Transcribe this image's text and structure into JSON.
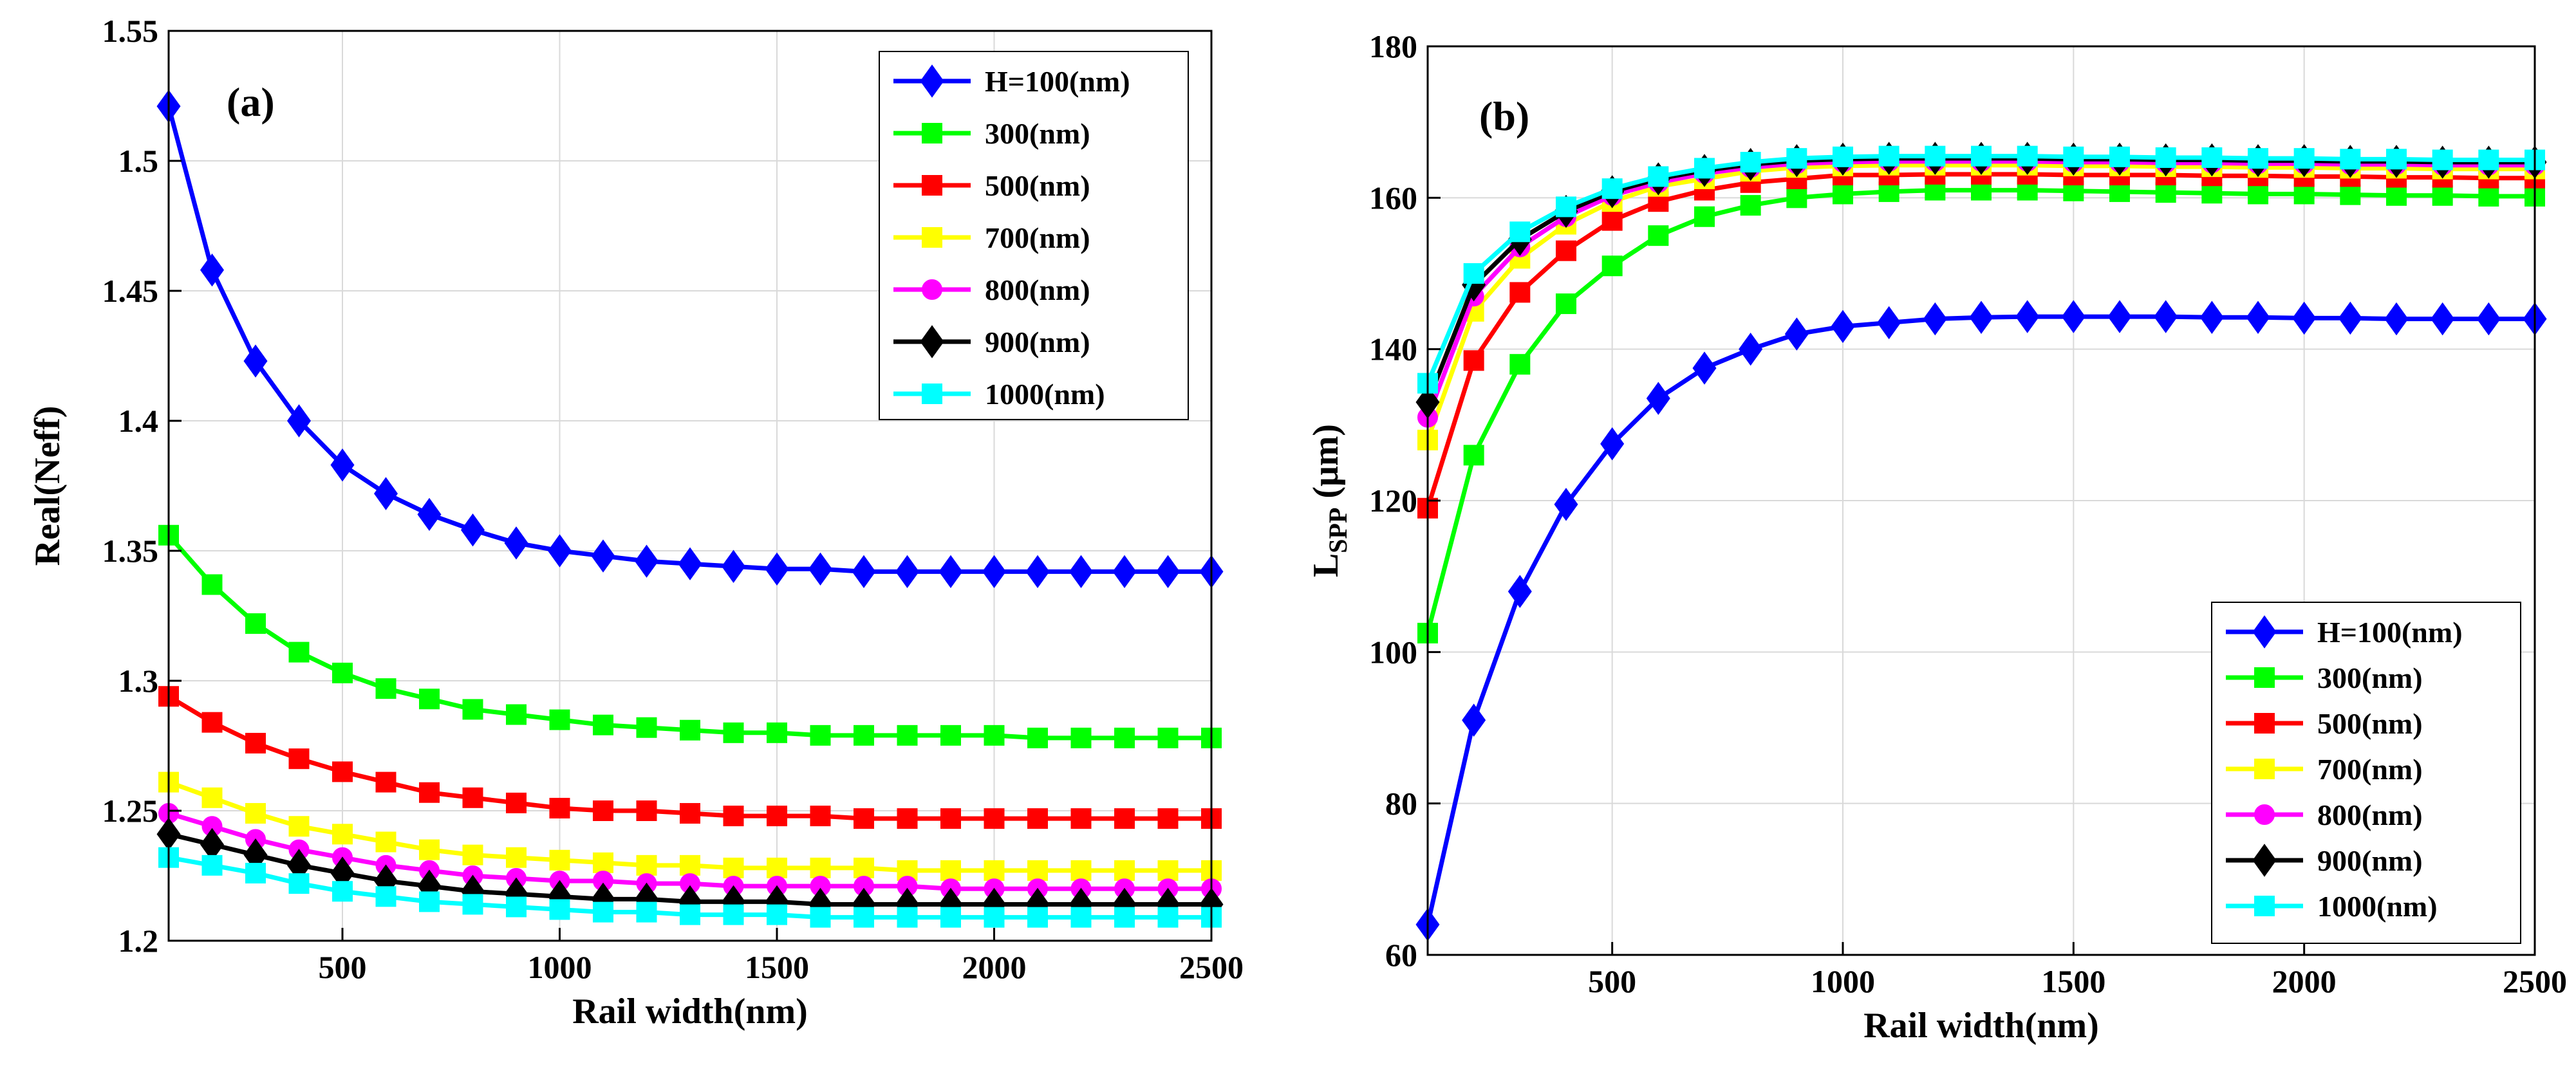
{
  "chart_data": [
    {
      "type": "line",
      "panel_label": "(a)",
      "xlabel": "Rail width(nm)",
      "ylabel": "Real(Neff)",
      "xlim": [
        100,
        2500
      ],
      "ylim": [
        1.2,
        1.55
      ],
      "xticks": [
        500,
        1000,
        1500,
        2000,
        2500
      ],
      "yticks": [
        1.2,
        1.25,
        1.3,
        1.35,
        1.4,
        1.45,
        1.5,
        1.55
      ],
      "ytick_labels": [
        "1.2",
        "1.25",
        "1.3",
        "1.35",
        "1.4",
        "1.45",
        "1.5",
        "1.55"
      ],
      "grid": true,
      "legend_position": "top-right",
      "x": [
        100,
        200,
        300,
        400,
        500,
        600,
        700,
        800,
        900,
        1000,
        1100,
        1200,
        1300,
        1400,
        1500,
        1600,
        1700,
        1800,
        1900,
        2000,
        2100,
        2200,
        2300,
        2400,
        2500
      ],
      "series": [
        {
          "name": "H=100(nm)",
          "color": "#0000ff",
          "marker": "diamond",
          "values": [
            1.521,
            1.458,
            1.423,
            1.4,
            1.383,
            1.372,
            1.364,
            1.358,
            1.353,
            1.35,
            1.348,
            1.346,
            1.345,
            1.344,
            1.343,
            1.343,
            1.342,
            1.342,
            1.342,
            1.342,
            1.342,
            1.342,
            1.342,
            1.342,
            1.342
          ]
        },
        {
          "name": "300(nm)",
          "color": "#00ff00",
          "marker": "square",
          "values": [
            1.356,
            1.337,
            1.322,
            1.311,
            1.303,
            1.297,
            1.293,
            1.289,
            1.287,
            1.285,
            1.283,
            1.282,
            1.281,
            1.28,
            1.28,
            1.279,
            1.279,
            1.279,
            1.279,
            1.279,
            1.278,
            1.278,
            1.278,
            1.278,
            1.278
          ]
        },
        {
          "name": "500(nm)",
          "color": "#ff0000",
          "marker": "square",
          "values": [
            1.294,
            1.284,
            1.276,
            1.27,
            1.265,
            1.261,
            1.257,
            1.255,
            1.253,
            1.251,
            1.25,
            1.25,
            1.249,
            1.248,
            1.248,
            1.248,
            1.247,
            1.247,
            1.247,
            1.247,
            1.247,
            1.247,
            1.247,
            1.247,
            1.247
          ]
        },
        {
          "name": "700(nm)",
          "color": "#ffff00",
          "marker": "square",
          "values": [
            1.261,
            1.255,
            1.249,
            1.244,
            1.241,
            1.238,
            1.235,
            1.233,
            1.232,
            1.231,
            1.23,
            1.229,
            1.229,
            1.228,
            1.228,
            1.228,
            1.228,
            1.227,
            1.227,
            1.227,
            1.227,
            1.227,
            1.227,
            1.227,
            1.227
          ]
        },
        {
          "name": "800(nm)",
          "color": "#ff00ff",
          "marker": "circle",
          "values": [
            1.249,
            1.244,
            1.239,
            1.235,
            1.232,
            1.229,
            1.227,
            1.225,
            1.224,
            1.223,
            1.223,
            1.222,
            1.222,
            1.221,
            1.221,
            1.221,
            1.221,
            1.221,
            1.22,
            1.22,
            1.22,
            1.22,
            1.22,
            1.22,
            1.22
          ]
        },
        {
          "name": "900(nm)",
          "color": "#000000",
          "marker": "diamond",
          "values": [
            1.241,
            1.237,
            1.233,
            1.229,
            1.226,
            1.223,
            1.221,
            1.219,
            1.218,
            1.217,
            1.216,
            1.216,
            1.215,
            1.215,
            1.215,
            1.214,
            1.214,
            1.214,
            1.214,
            1.214,
            1.214,
            1.214,
            1.214,
            1.214,
            1.214
          ]
        },
        {
          "name": "1000(nm)",
          "color": "#00ffff",
          "marker": "square",
          "values": [
            1.232,
            1.229,
            1.226,
            1.222,
            1.219,
            1.217,
            1.215,
            1.214,
            1.213,
            1.212,
            1.211,
            1.211,
            1.21,
            1.21,
            1.21,
            1.209,
            1.209,
            1.209,
            1.209,
            1.209,
            1.209,
            1.209,
            1.209,
            1.209,
            1.209
          ]
        }
      ]
    },
    {
      "type": "line",
      "panel_label": "(b)",
      "xlabel": "Rail width(nm)",
      "ylabel_main": "L",
      "ylabel_sub": "SPP",
      "ylabel_unit": "(μm)",
      "xlim": [
        100,
        2500
      ],
      "ylim": [
        60,
        180
      ],
      "xticks": [
        500,
        1000,
        1500,
        2000,
        2500
      ],
      "yticks": [
        60,
        80,
        100,
        120,
        140,
        160,
        180
      ],
      "ytick_labels": [
        "60",
        "80",
        "100",
        "120",
        "140",
        "160",
        "180"
      ],
      "grid": true,
      "legend_position": "bottom-right",
      "x": [
        100,
        200,
        300,
        400,
        500,
        600,
        700,
        800,
        900,
        1000,
        1100,
        1200,
        1300,
        1400,
        1500,
        1600,
        1700,
        1800,
        1900,
        2000,
        2100,
        2200,
        2300,
        2400,
        2500
      ],
      "series": [
        {
          "name": "H=100(nm)",
          "color": "#0000ff",
          "marker": "diamond",
          "values": [
            64,
            91,
            108,
            119.5,
            127.5,
            133.5,
            137.5,
            140,
            142,
            143,
            143.5,
            144,
            144.2,
            144.3,
            144.3,
            144.3,
            144.3,
            144.2,
            144.2,
            144.1,
            144.1,
            144,
            144,
            144,
            144
          ]
        },
        {
          "name": "300(nm)",
          "color": "#00ff00",
          "marker": "square",
          "values": [
            102.5,
            126,
            138,
            146,
            151,
            155,
            157.5,
            159,
            160,
            160.5,
            160.8,
            161,
            161,
            161,
            160.9,
            160.8,
            160.7,
            160.6,
            160.5,
            160.5,
            160.4,
            160.3,
            160.3,
            160.2,
            160.2
          ]
        },
        {
          "name": "500(nm)",
          "color": "#ff0000",
          "marker": "square",
          "values": [
            119,
            138.5,
            147.5,
            153,
            157,
            159.5,
            161,
            162,
            162.5,
            163,
            163,
            163.1,
            163.1,
            163.1,
            163,
            163,
            163,
            162.9,
            162.9,
            162.8,
            162.8,
            162.7,
            162.7,
            162.6,
            162.6
          ]
        },
        {
          "name": "700(nm)",
          "color": "#ffff00",
          "marker": "square",
          "values": [
            128,
            145,
            152,
            156.5,
            159.5,
            161.5,
            162.5,
            163.5,
            164,
            164.2,
            164.3,
            164.3,
            164.3,
            164.3,
            164.2,
            164.2,
            164.1,
            164.1,
            164,
            164,
            163.9,
            163.9,
            163.8,
            163.8,
            163.8
          ]
        },
        {
          "name": "800(nm)",
          "color": "#ff00ff",
          "marker": "circle",
          "values": [
            131,
            147,
            153.5,
            157.5,
            160.3,
            162,
            163.2,
            164,
            164.5,
            164.7,
            164.8,
            164.8,
            164.8,
            164.8,
            164.7,
            164.7,
            164.6,
            164.6,
            164.5,
            164.5,
            164.4,
            164.4,
            164.3,
            164.3,
            164.3
          ]
        },
        {
          "name": "900(nm)",
          "color": "#000000",
          "marker": "diamond",
          "values": [
            133,
            148.5,
            154.5,
            158.2,
            160.8,
            162.5,
            163.6,
            164.4,
            164.9,
            165.1,
            165.2,
            165.2,
            165.2,
            165.2,
            165.1,
            165.1,
            165,
            165,
            164.9,
            164.9,
            164.8,
            164.8,
            164.7,
            164.7,
            164.7
          ]
        },
        {
          "name": "1000(nm)",
          "color": "#00ffff",
          "marker": "square",
          "values": [
            135.5,
            150,
            155.5,
            158.8,
            161.2,
            162.8,
            163.9,
            164.7,
            165.2,
            165.4,
            165.5,
            165.5,
            165.5,
            165.5,
            165.4,
            165.4,
            165.3,
            165.3,
            165.2,
            165.2,
            165.1,
            165.1,
            165,
            165,
            165
          ]
        }
      ]
    }
  ]
}
